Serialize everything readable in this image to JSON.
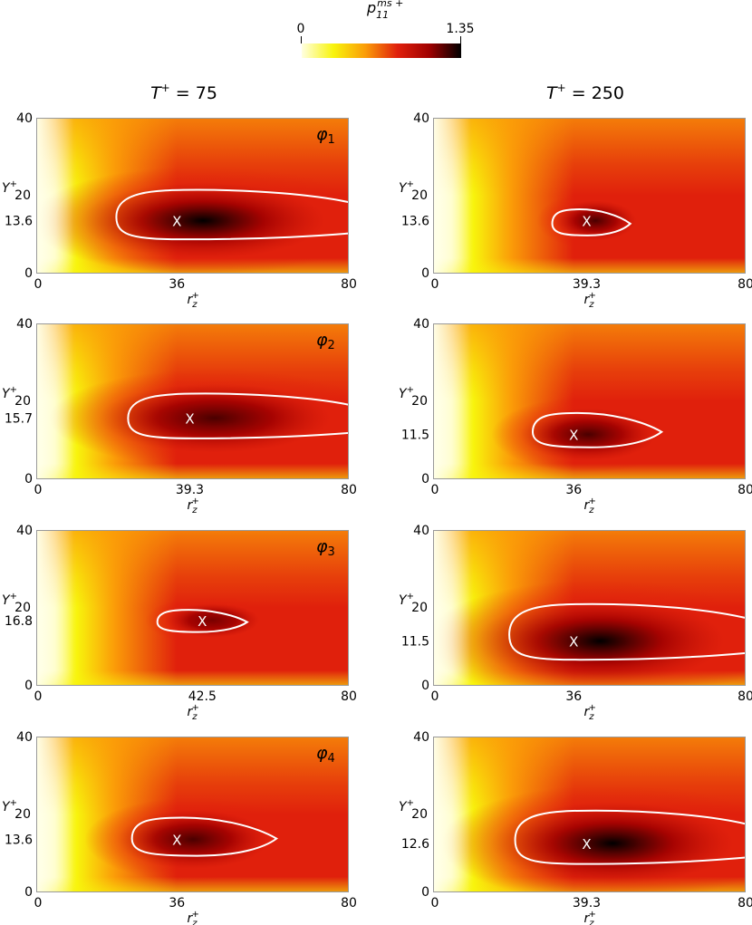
{
  "colorbar": {
    "label": "p11ms+",
    "label_base": "p",
    "label_sub": "11",
    "label_sup": "ms +",
    "min_label": "0",
    "max_label": "1.35",
    "range": [
      0,
      1.35
    ],
    "colors": [
      "#ffffe0",
      "#f8f40c",
      "#fb9c08",
      "#e0200c",
      "#a00000",
      "#000000"
    ]
  },
  "columns": [
    {
      "title": "T + = 75",
      "title_main": "T",
      "title_sup": "+",
      "title_rest": " = 75"
    },
    {
      "title": "T + = 250",
      "title_main": "T",
      "title_sup": "+",
      "title_rest": " = 250"
    }
  ],
  "axes": {
    "xlabel": "rz+",
    "xlabel_base": "r",
    "xlabel_sub": "z",
    "xlabel_sup": "+",
    "ylabel": "Y +",
    "ylabel_main": "Y",
    "ylabel_sup": "+",
    "xlim": [
      0,
      80
    ],
    "ylim": [
      0,
      40
    ],
    "x_min_label": "0",
    "x_max_label": "80",
    "y_ticks": [
      "0",
      "20",
      "40"
    ]
  },
  "row_labels": [
    {
      "base": "φ",
      "sub": "1"
    },
    {
      "base": "φ",
      "sub": "2"
    },
    {
      "base": "φ",
      "sub": "3"
    },
    {
      "base": "φ",
      "sub": "4"
    }
  ],
  "chart_data": {
    "type": "heatmap",
    "title": "",
    "xlabel": "rz+",
    "ylabel": "Y +",
    "colorbar_label": "p11ms+",
    "value_range": [
      0,
      1.35
    ],
    "xlim": [
      0,
      80
    ],
    "ylim": [
      0,
      40
    ],
    "panels": [
      {
        "row": 1,
        "phi": "φ1",
        "T": "75",
        "x_peak": 36,
        "x_peak_label": "36",
        "y_peak": 13.6,
        "y_peak_label": "13.6",
        "marker": "X",
        "peak_level": 1.3,
        "contour": {
          "x_left": 20.5,
          "x_right": 80,
          "y_top": 21.5,
          "y_bottom": 8.8
        }
      },
      {
        "row": 1,
        "phi": "φ1",
        "T": "250",
        "x_peak": 39.3,
        "x_peak_label": "39.3",
        "y_peak": 13.6,
        "y_peak_label": "13.6",
        "marker": "X",
        "peak_level": 1.0,
        "contour": {
          "x_left": 30.5,
          "x_right": 50.5,
          "y_top": 16.5,
          "y_bottom": 9.8
        }
      },
      {
        "row": 2,
        "phi": "φ2",
        "T": "75",
        "x_peak": 39.3,
        "x_peak_label": "39.3",
        "y_peak": 15.7,
        "y_peak_label": "15.7",
        "marker": "X",
        "peak_level": 1.05,
        "contour": {
          "x_left": 23.5,
          "x_right": 80,
          "y_top": 22.0,
          "y_bottom": 10.5
        }
      },
      {
        "row": 2,
        "phi": "φ2",
        "T": "250",
        "x_peak": 36,
        "x_peak_label": "36",
        "y_peak": 11.5,
        "y_peak_label": "11.5",
        "marker": "X",
        "peak_level": 1.0,
        "contour": {
          "x_left": 25.5,
          "x_right": 58.5,
          "y_top": 17.0,
          "y_bottom": 8.2
        }
      },
      {
        "row": 3,
        "phi": "φ3",
        "T": "75",
        "x_peak": 42.5,
        "x_peak_label": "42.5",
        "y_peak": 16.8,
        "y_peak_label": "16.8",
        "marker": "X",
        "peak_level": 0.95,
        "contour": {
          "x_left": 31,
          "x_right": 54,
          "y_top": 19.5,
          "y_bottom": 13.8
        }
      },
      {
        "row": 3,
        "phi": "φ3",
        "T": "250",
        "x_peak": 36,
        "x_peak_label": "36",
        "y_peak": 11.5,
        "y_peak_label": "11.5",
        "marker": "X",
        "peak_level": 1.35,
        "contour": {
          "x_left": 19.5,
          "x_right": 80,
          "y_top": 21.0,
          "y_bottom": 6.7
        }
      },
      {
        "row": 4,
        "phi": "φ4",
        "T": "75",
        "x_peak": 36,
        "x_peak_label": "36",
        "y_peak": 13.6,
        "y_peak_label": "13.6",
        "marker": "X",
        "peak_level": 1.0,
        "contour": {
          "x_left": 24.5,
          "x_right": 61.5,
          "y_top": 19.2,
          "y_bottom": 9.4
        }
      },
      {
        "row": 4,
        "phi": "φ4",
        "T": "250",
        "x_peak": 39.3,
        "x_peak_label": "39.3",
        "y_peak": 12.6,
        "y_peak_label": "12.6",
        "marker": "X",
        "peak_level": 1.35,
        "contour": {
          "x_left": 21,
          "x_right": 80,
          "y_top": 21.0,
          "y_bottom": 7.3
        }
      }
    ]
  }
}
